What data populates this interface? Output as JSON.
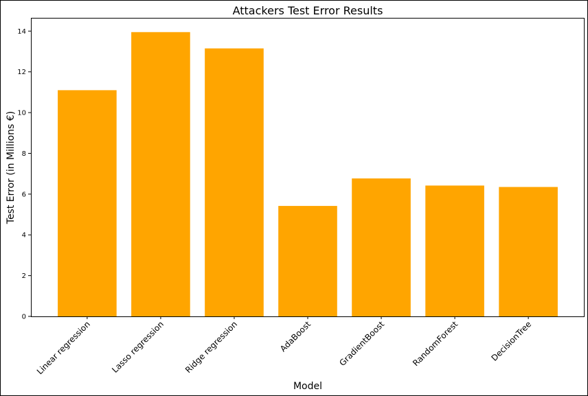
{
  "chart_data": {
    "type": "bar",
    "title": "Attackers Test Error Results",
    "xlabel": "Model",
    "ylabel": "Test Error (in Millions €)",
    "categories": [
      "Linear regression",
      "Lasso regression",
      "Ridge regression",
      "AdaBoost",
      "GradientBoost",
      "RandomForest",
      "DecisionTree"
    ],
    "values": [
      11.1,
      13.95,
      13.15,
      5.42,
      6.77,
      6.42,
      6.35
    ],
    "ylim": [
      0,
      14.65
    ],
    "yticks": [
      0,
      2,
      4,
      6,
      8,
      10,
      12,
      14
    ],
    "bar_color": "#ffa500",
    "grid": false,
    "legend": "none"
  }
}
